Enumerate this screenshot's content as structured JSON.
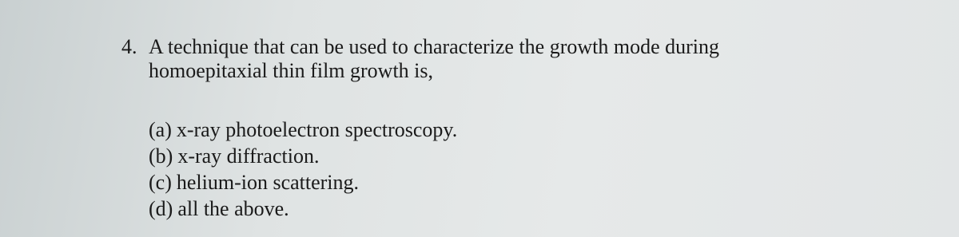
{
  "question": {
    "number": "4.",
    "text_lines": [
      "A technique that can be used to characterize the growth mode during",
      "homoepitaxial thin film growth is,"
    ]
  },
  "options": [
    {
      "label": "(a)",
      "text": "x-ray photoelectron spectroscopy."
    },
    {
      "label": "(b)",
      "text": "x-ray diffraction."
    },
    {
      "label": "(c)",
      "text": "helium-ion scattering."
    },
    {
      "label": "(d)",
      "text": "all the above."
    }
  ]
}
